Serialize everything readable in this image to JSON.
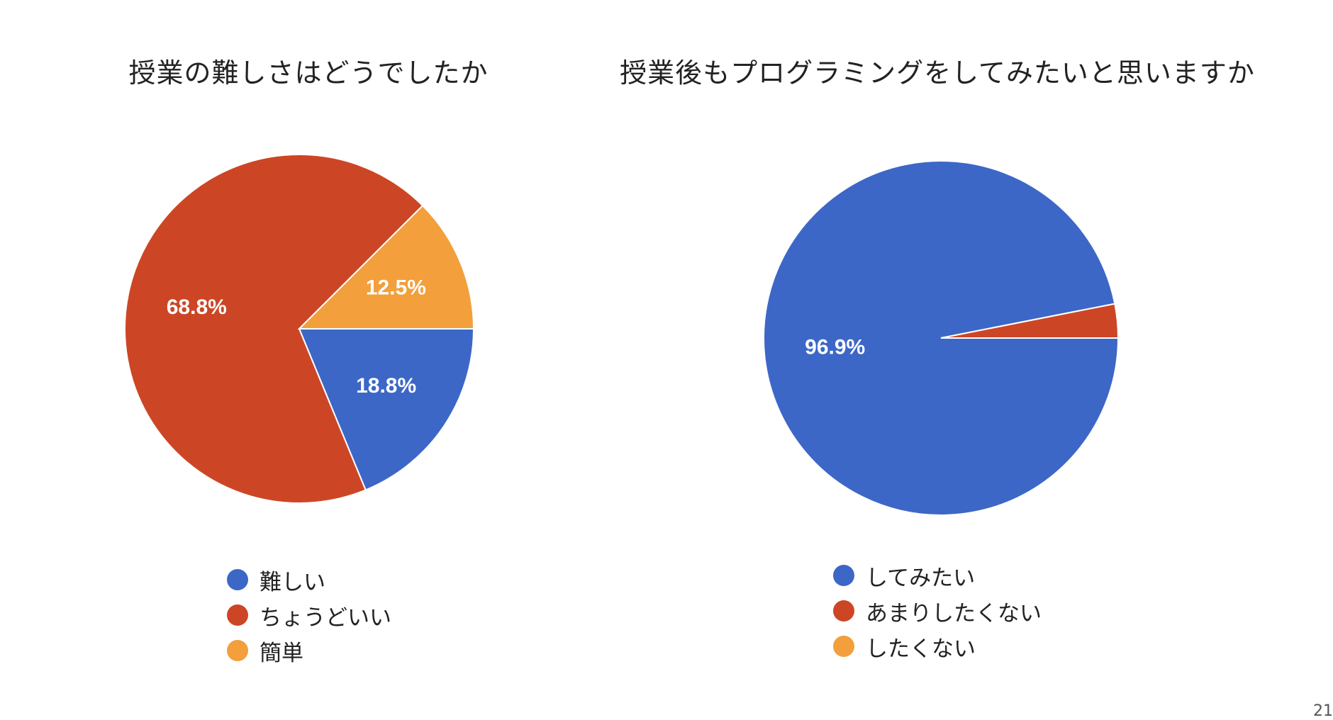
{
  "chart_data": [
    {
      "type": "pie",
      "title": "授業の難しさはどうでしたか",
      "start_angle_deg": 90,
      "series": [
        {
          "name": "難しい",
          "value": 18.8,
          "label": "18.8%",
          "color": "#3C67C7"
        },
        {
          "name": "ちょうどいい",
          "value": 68.8,
          "label": "68.8%",
          "color": "#CC4626"
        },
        {
          "name": "簡単",
          "value": 12.5,
          "label": "12.5%",
          "color": "#F29F3C"
        }
      ]
    },
    {
      "type": "pie",
      "title": "授業後もプログラミングをしてみたいと思いますか",
      "start_angle_deg": 90,
      "series": [
        {
          "name": "してみたい",
          "value": 96.9,
          "label": "96.9%",
          "color": "#3C67C7"
        },
        {
          "name": "あまりしたくない",
          "value": 3.1,
          "label": "",
          "color": "#CC4626"
        },
        {
          "name": "したくない",
          "value": 0,
          "label": "",
          "color": "#F29F3C"
        }
      ]
    }
  ],
  "page_number": "21"
}
